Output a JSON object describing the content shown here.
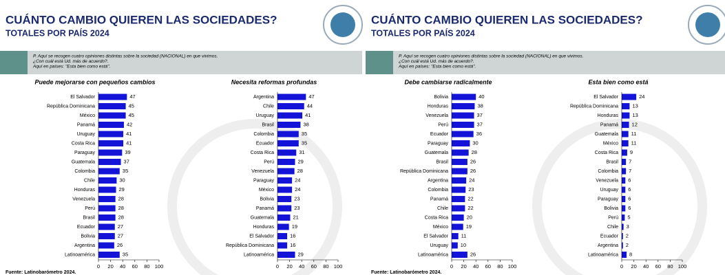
{
  "slides": [
    {
      "title": "CUÁNTO CAMBIO QUIEREN LAS SOCIEDADES?",
      "subtitle": "TOTALES POR PAÍS 2024",
      "question": [
        "P. Aquí se recogen cuatro opiniones distintas sobre la sociedad (NACIONAL) en que vivimos.",
        "¿Con cuál está Ud. más de acuerdo?.",
        "Aquí en países: \"Esta bien como está\"."
      ],
      "source": "Fuente: Latinobarómetro 2024."
    },
    {
      "title": "CUÁNTO CAMBIO QUIEREN LAS SOCIEDADES?",
      "subtitle": "TOTALES POR PAÍS 2024",
      "question": [
        "P. Aquí se recogen cuatro opiniones distintas sobre la sociedad (NACIONAL) en que vivimos.",
        "¿Con cuál está Ud. más de acuerdo?.",
        "Aquí en países: \"Esta bien como está\"."
      ],
      "source": "Fuente: Latinobarómetro 2024."
    }
  ],
  "chart_data": [
    {
      "type": "bar",
      "orientation": "horizontal",
      "title": "Puede mejorarse con pequeños cambios",
      "categories": [
        "El Salvador",
        "República Dominicana",
        "México",
        "Panamá",
        "Uruguay",
        "Costa Rica",
        "Paraguay",
        "Guatemala",
        "Colombia",
        "Chile",
        "Honduras",
        "Venezuela",
        "Perú",
        "Brasil",
        "Ecuador",
        "Bolivia",
        "Argentina",
        "Latinoamérica"
      ],
      "values": [
        47,
        45,
        45,
        42,
        41,
        41,
        39,
        37,
        35,
        30,
        29,
        28,
        28,
        28,
        27,
        27,
        26,
        35
      ],
      "color": "#1414d8",
      "xlim": [
        0,
        100
      ],
      "xticks": [
        0,
        20,
        40,
        60,
        80,
        100
      ]
    },
    {
      "type": "bar",
      "orientation": "horizontal",
      "title": "Necesita reformas profundas",
      "categories": [
        "Argentina",
        "Chile",
        "Uruguay",
        "Brasil",
        "Colombia",
        "Ecuador",
        "Costa Rica",
        "Perú",
        "Venezuela",
        "Paraguay",
        "México",
        "Bolivia",
        "Panamá",
        "Guatemala",
        "Honduras",
        "El Salvador",
        "República Dominicana",
        "Latinoamérica"
      ],
      "values": [
        47,
        44,
        41,
        38,
        35,
        35,
        31,
        29,
        28,
        24,
        24,
        23,
        23,
        21,
        19,
        16,
        16,
        29
      ],
      "color": "#1414d8",
      "xlim": [
        0,
        100
      ],
      "xticks": [
        0,
        20,
        40,
        60,
        80,
        100
      ]
    },
    {
      "type": "bar",
      "orientation": "horizontal",
      "title": "Debe cambiarse radicalmente",
      "categories": [
        "Bolivia",
        "Honduras",
        "Venezuela",
        "Perú",
        "Ecuador",
        "Paraguay",
        "Guatemala",
        "Brasil",
        "República Dominicana",
        "Argentina",
        "Colombia",
        "Panamá",
        "Chile",
        "Costa Rica",
        "México",
        "El Salvador",
        "Uruguay",
        "Latinoamérica"
      ],
      "values": [
        40,
        38,
        37,
        37,
        36,
        30,
        28,
        26,
        26,
        24,
        23,
        22,
        22,
        20,
        19,
        11,
        10,
        26
      ],
      "color": "#1414d8",
      "xlim": [
        0,
        100
      ],
      "xticks": [
        0,
        20,
        40,
        60,
        80,
        100
      ]
    },
    {
      "type": "bar",
      "orientation": "horizontal",
      "title": "Esta bien como está",
      "categories": [
        "El Salvador",
        "República Dominicana",
        "Honduras",
        "Panamá",
        "Guatemala",
        "México",
        "Costa Rica",
        "Brasil",
        "Colombia",
        "Venezuela",
        "Uruguay",
        "Paraguay",
        "Bolivia",
        "Perú",
        "Chile",
        "Ecuador",
        "Argentina",
        "Latinoamérica"
      ],
      "values": [
        24,
        13,
        13,
        12,
        11,
        11,
        9,
        7,
        7,
        6,
        6,
        6,
        6,
        5,
        3,
        2,
        2,
        8
      ],
      "color": "#1414d8",
      "xlim": [
        0,
        100
      ],
      "xticks": [
        0,
        20,
        40,
        60,
        80,
        100
      ]
    }
  ]
}
